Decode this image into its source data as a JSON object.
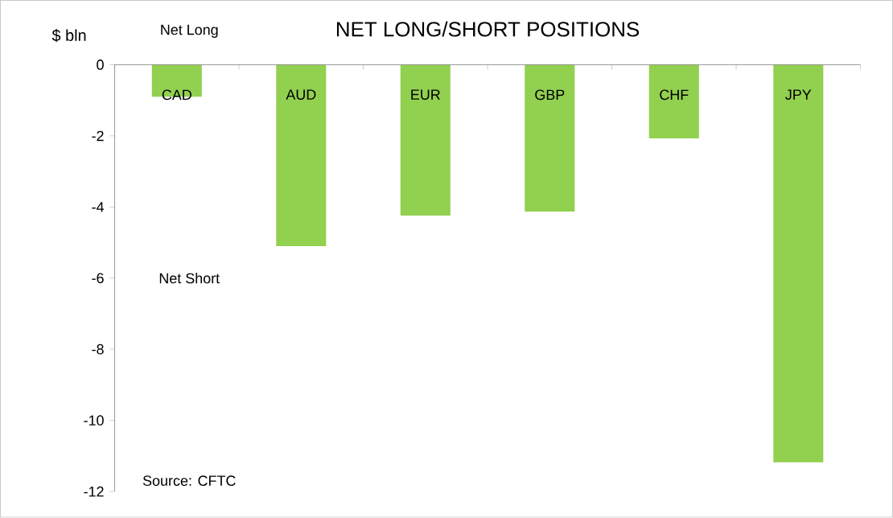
{
  "chart_data": {
    "type": "bar",
    "title": "NET LONG/SHORT POSITIONS",
    "ylabel": "$ bln",
    "categories": [
      "CAD",
      "AUD",
      "EUR",
      "GBP",
      "CHF",
      "JPY"
    ],
    "values": [
      -0.9,
      -5.1,
      -4.24,
      -4.13,
      -2.07,
      -11.18
    ],
    "color": "#92d050",
    "ylim": [
      -12,
      0
    ],
    "yticks": [
      -12,
      -10,
      -8,
      -6,
      -4,
      -2,
      0
    ],
    "annotations": [
      "Net Long",
      "Net Short",
      "Source: CFTC"
    ]
  }
}
